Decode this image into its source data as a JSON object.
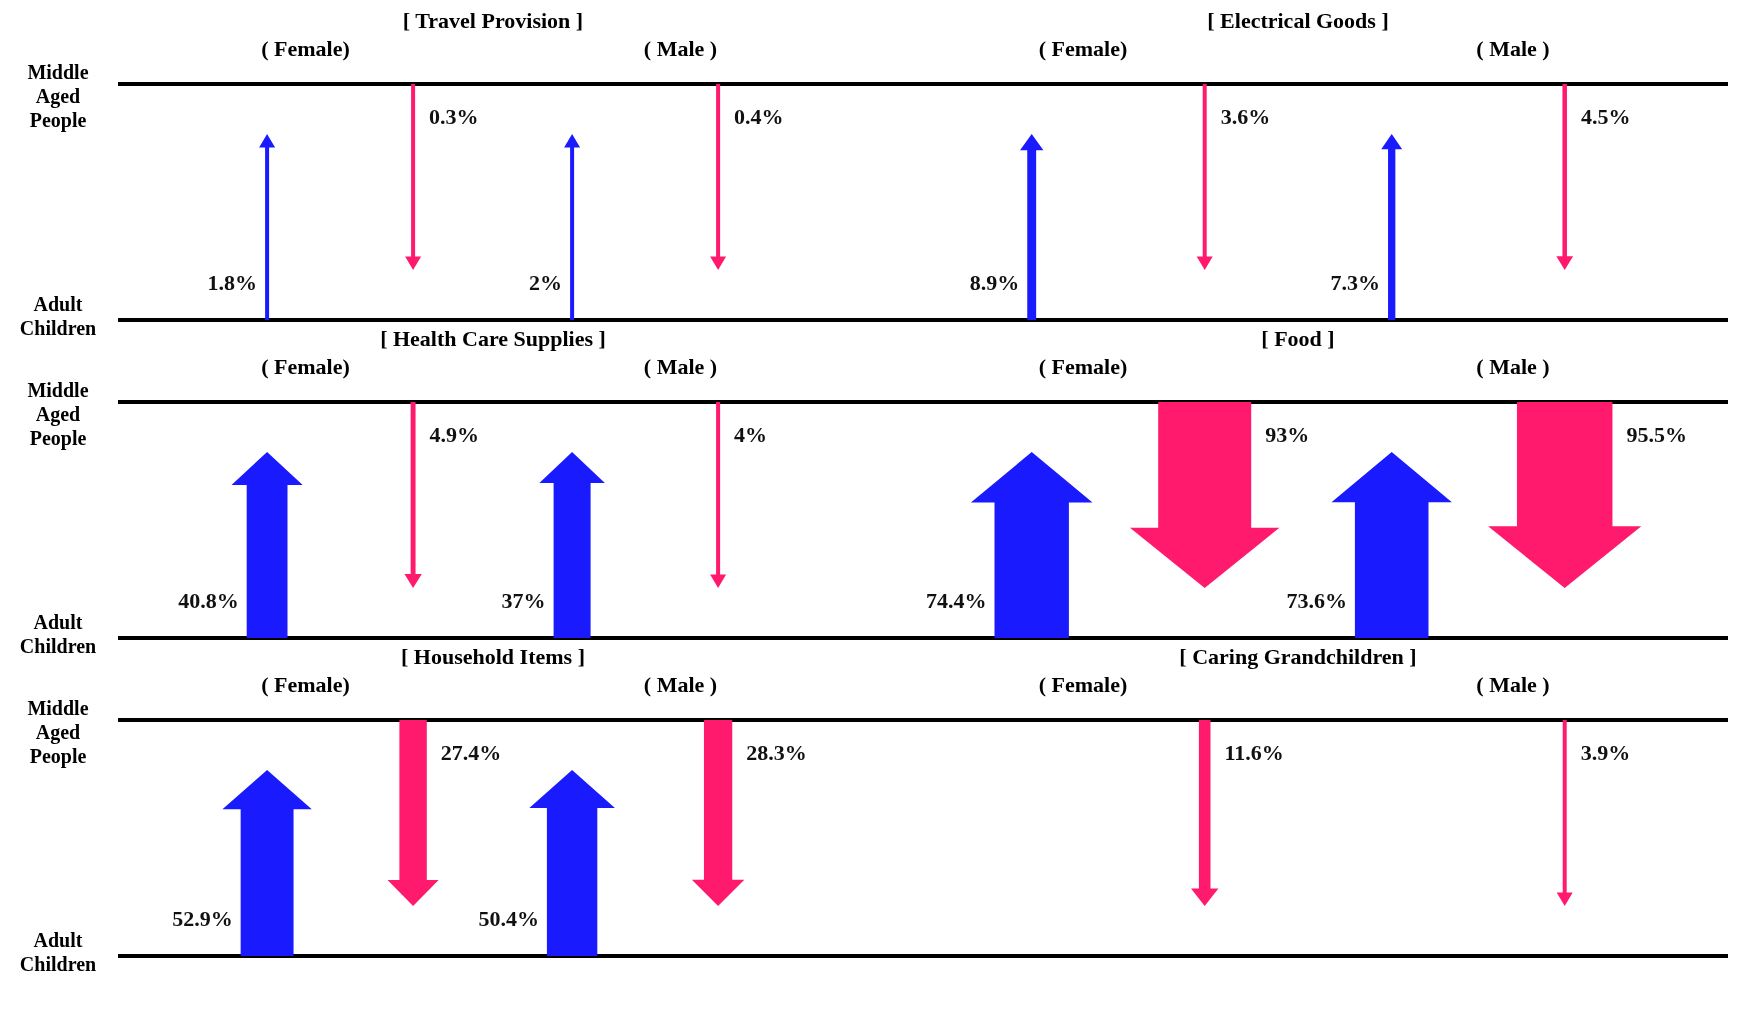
{
  "chart_data": [
    {
      "type": "other",
      "title": "[ Travel Provision ]",
      "categories": [
        "( Female)",
        "( Male )"
      ],
      "y_categories": [
        "Middle Aged People",
        "Adult Children"
      ],
      "series": [
        {
          "color": "#1a1aff",
          "values": [
            1.8,
            2
          ],
          "value_labels": [
            "1.8%",
            "2%"
          ]
        },
        {
          "color": "#ff1a6e",
          "values": [
            0.3,
            0.4
          ],
          "value_labels": [
            "0.3%",
            "0.4%"
          ]
        }
      ]
    },
    {
      "type": "other",
      "title": "[ Electrical Goods ]",
      "categories": [
        "( Female)",
        "( Male )"
      ],
      "series": [
        {
          "color": "#1a1aff",
          "values": [
            8.9,
            7.3
          ],
          "value_labels": [
            "8.9%",
            "7.3%"
          ]
        },
        {
          "color": "#ff1a6e",
          "values": [
            3.6,
            4.5
          ],
          "value_labels": [
            "3.6%",
            "4.5%"
          ]
        }
      ]
    },
    {
      "type": "other",
      "title": "[ Health Care Supplies ]",
      "categories": [
        "( Female)",
        "( Male )"
      ],
      "y_categories": [
        "Middle Aged People",
        "Adult Children"
      ],
      "series": [
        {
          "color": "#1a1aff",
          "values": [
            40.8,
            37
          ],
          "value_labels": [
            "40.8%",
            "37%"
          ]
        },
        {
          "color": "#ff1a6e",
          "values": [
            4.9,
            4
          ],
          "value_labels": [
            "4.9%",
            "4%"
          ]
        }
      ]
    },
    {
      "type": "other",
      "title": "[ Food ]",
      "categories": [
        "( Female)",
        "( Male )"
      ],
      "series": [
        {
          "color": "#1a1aff",
          "values": [
            74.4,
            73.6
          ],
          "value_labels": [
            "74.4%",
            "73.6%"
          ]
        },
        {
          "color": "#ff1a6e",
          "values": [
            93,
            95.5
          ],
          "value_labels": [
            "93%",
            "95.5%"
          ]
        }
      ]
    },
    {
      "type": "other",
      "title": "[ Household Items ]",
      "categories": [
        "( Female)",
        "( Male )"
      ],
      "y_categories": [
        "Middle Aged People",
        "Adult Children"
      ],
      "series": [
        {
          "color": "#1a1aff",
          "values": [
            52.9,
            50.4
          ],
          "value_labels": [
            "52.9%",
            "50.4%"
          ]
        },
        {
          "color": "#ff1a6e",
          "values": [
            27.4,
            28.3
          ],
          "value_labels": [
            "27.4%",
            "28.3%"
          ]
        }
      ]
    },
    {
      "type": "other",
      "title": "[ Caring Grandchildren ]",
      "categories": [
        "( Female)",
        "( Male )"
      ],
      "series": [
        {
          "color": "#1a1aff",
          "values": [
            null,
            null
          ]
        },
        {
          "color": "#ff1a6e",
          "values": [
            11.6,
            3.9
          ],
          "value_labels": [
            "11.6%",
            "3.9%"
          ]
        }
      ]
    }
  ]
}
